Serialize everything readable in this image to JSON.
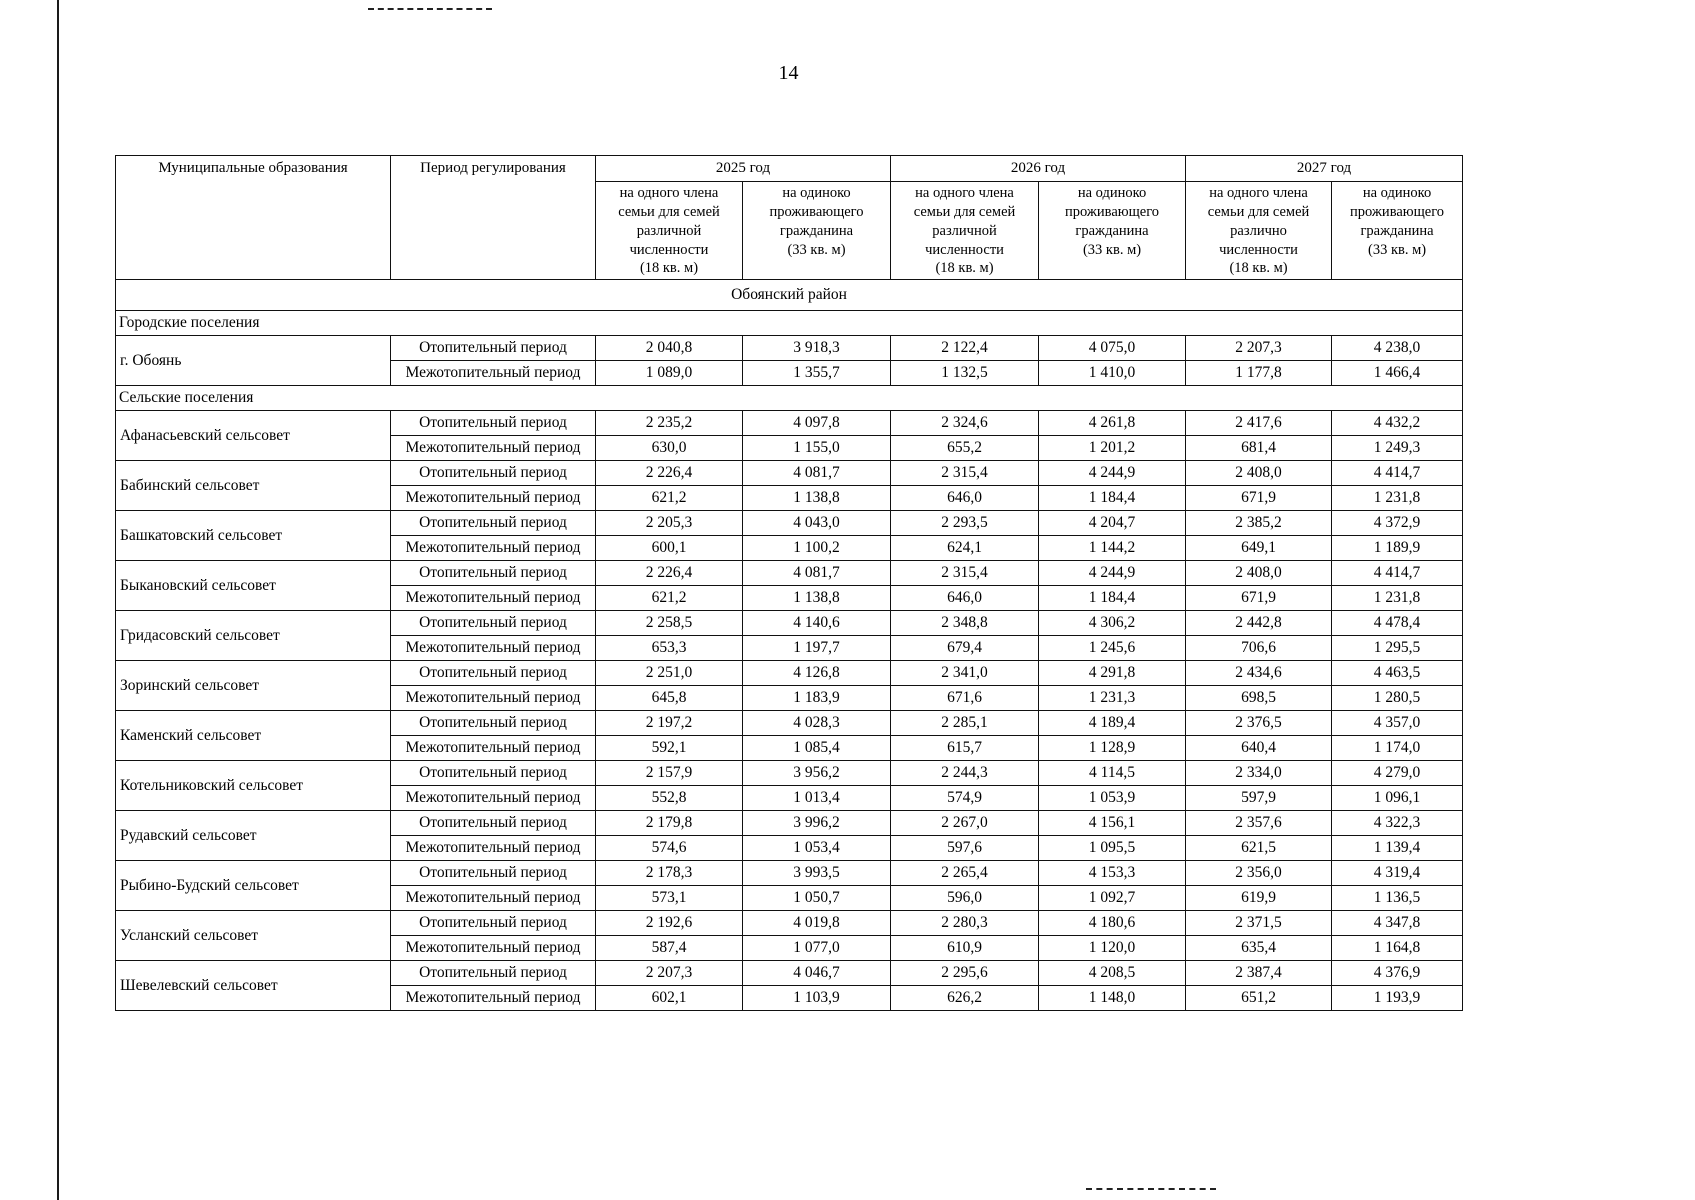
{
  "page": {
    "number": "14"
  },
  "table": {
    "header": {
      "col_municipality": "Муниципальные образования",
      "col_period": "Период регулирования",
      "years": [
        {
          "label": "2025 год",
          "sub": [
            "на одного члена\nсемьи для семей\nразличной\nчисленности\n(18 кв. м)",
            "на одиноко\nпроживающего\nгражданина\n(33 кв. м)"
          ]
        },
        {
          "label": "2026 год",
          "sub": [
            "на одного члена\nсемьи для семей\nразличной\nчисленности\n(18 кв. м)",
            "на одиноко\nпроживающего\nгражданина\n(33 кв. м)"
          ]
        },
        {
          "label": "2027 год",
          "sub": [
            "на одного члена\nсемьи для семей\nразлично\nчисленности\n(18 кв. м)",
            "на одиноко\nпроживающего\nгражданина\n(33 кв. м)"
          ]
        }
      ]
    },
    "district": "Обоянский район",
    "sections": [
      {
        "title": "Городские поселения",
        "rows": [
          {
            "name": "г. Обоянь",
            "periods": [
              {
                "label": "Отопительный период",
                "values": [
                  "2 040,8",
                  "3 918,3",
                  "2 122,4",
                  "4 075,0",
                  "2 207,3",
                  "4 238,0"
                ]
              },
              {
                "label": "Межотопительный период",
                "values": [
                  "1 089,0",
                  "1 355,7",
                  "1 132,5",
                  "1 410,0",
                  "1 177,8",
                  "1 466,4"
                ]
              }
            ]
          }
        ]
      },
      {
        "title": "Сельские поселения",
        "rows": [
          {
            "name": "Афанасьевский сельсовет",
            "periods": [
              {
                "label": "Отопительный период",
                "values": [
                  "2 235,2",
                  "4 097,8",
                  "2 324,6",
                  "4 261,8",
                  "2 417,6",
                  "4 432,2"
                ]
              },
              {
                "label": "Межотопительный период",
                "values": [
                  "630,0",
                  "1 155,0",
                  "655,2",
                  "1 201,2",
                  "681,4",
                  "1 249,3"
                ]
              }
            ]
          },
          {
            "name": "Бабинский сельсовет",
            "periods": [
              {
                "label": "Отопительный период",
                "values": [
                  "2 226,4",
                  "4 081,7",
                  "2 315,4",
                  "4 244,9",
                  "2 408,0",
                  "4 414,7"
                ]
              },
              {
                "label": "Межотопительный период",
                "values": [
                  "621,2",
                  "1 138,8",
                  "646,0",
                  "1 184,4",
                  "671,9",
                  "1 231,8"
                ]
              }
            ]
          },
          {
            "name": "Башкатовский сельсовет",
            "periods": [
              {
                "label": "Отопительный период",
                "values": [
                  "2 205,3",
                  "4 043,0",
                  "2 293,5",
                  "4 204,7",
                  "2 385,2",
                  "4 372,9"
                ]
              },
              {
                "label": "Межотопительный период",
                "values": [
                  "600,1",
                  "1 100,2",
                  "624,1",
                  "1 144,2",
                  "649,1",
                  "1 189,9"
                ]
              }
            ]
          },
          {
            "name": "Быкановский сельсовет",
            "periods": [
              {
                "label": "Отопительный период",
                "values": [
                  "2 226,4",
                  "4 081,7",
                  "2 315,4",
                  "4 244,9",
                  "2 408,0",
                  "4 414,7"
                ]
              },
              {
                "label": "Межотопительный период",
                "values": [
                  "621,2",
                  "1 138,8",
                  "646,0",
                  "1 184,4",
                  "671,9",
                  "1 231,8"
                ]
              }
            ]
          },
          {
            "name": "Гридасовский сельсовет",
            "periods": [
              {
                "label": "Отопительный период",
                "values": [
                  "2 258,5",
                  "4 140,6",
                  "2 348,8",
                  "4 306,2",
                  "2 442,8",
                  "4 478,4"
                ]
              },
              {
                "label": "Межотопительный период",
                "values": [
                  "653,3",
                  "1 197,7",
                  "679,4",
                  "1 245,6",
                  "706,6",
                  "1 295,5"
                ]
              }
            ]
          },
          {
            "name": "Зоринский сельсовет",
            "periods": [
              {
                "label": "Отопительный период",
                "values": [
                  "2 251,0",
                  "4 126,8",
                  "2 341,0",
                  "4 291,8",
                  "2 434,6",
                  "4 463,5"
                ]
              },
              {
                "label": "Межотопительный период",
                "values": [
                  "645,8",
                  "1 183,9",
                  "671,6",
                  "1 231,3",
                  "698,5",
                  "1 280,5"
                ]
              }
            ]
          },
          {
            "name": "Каменский сельсовет",
            "periods": [
              {
                "label": "Отопительный период",
                "values": [
                  "2 197,2",
                  "4 028,3",
                  "2 285,1",
                  "4 189,4",
                  "2 376,5",
                  "4 357,0"
                ]
              },
              {
                "label": "Межотопительный период",
                "values": [
                  "592,1",
                  "1 085,4",
                  "615,7",
                  "1 128,9",
                  "640,4",
                  "1 174,0"
                ]
              }
            ]
          },
          {
            "name": "Котельниковский сельсовет",
            "periods": [
              {
                "label": "Отопительный период",
                "values": [
                  "2 157,9",
                  "3 956,2",
                  "2 244,3",
                  "4 114,5",
                  "2 334,0",
                  "4 279,0"
                ]
              },
              {
                "label": "Межотопительный период",
                "values": [
                  "552,8",
                  "1 013,4",
                  "574,9",
                  "1 053,9",
                  "597,9",
                  "1 096,1"
                ]
              }
            ]
          },
          {
            "name": "Рудавский сельсовет",
            "periods": [
              {
                "label": "Отопительный период",
                "values": [
                  "2 179,8",
                  "3 996,2",
                  "2 267,0",
                  "4 156,1",
                  "2 357,6",
                  "4 322,3"
                ]
              },
              {
                "label": "Межотопительный период",
                "values": [
                  "574,6",
                  "1 053,4",
                  "597,6",
                  "1 095,5",
                  "621,5",
                  "1 139,4"
                ]
              }
            ]
          },
          {
            "name": "Рыбино-Будский сельсовет",
            "periods": [
              {
                "label": "Отопительный период",
                "values": [
                  "2 178,3",
                  "3 993,5",
                  "2 265,4",
                  "4 153,3",
                  "2 356,0",
                  "4 319,4"
                ]
              },
              {
                "label": "Межотопительный период",
                "values": [
                  "573,1",
                  "1 050,7",
                  "596,0",
                  "1 092,7",
                  "619,9",
                  "1 136,5"
                ]
              }
            ]
          },
          {
            "name": "Усланский сельсовет",
            "periods": [
              {
                "label": "Отопительный период",
                "values": [
                  "2 192,6",
                  "4 019,8",
                  "2 280,3",
                  "4 180,6",
                  "2 371,5",
                  "4 347,8"
                ]
              },
              {
                "label": "Межотопительный период",
                "values": [
                  "587,4",
                  "1 077,0",
                  "610,9",
                  "1 120,0",
                  "635,4",
                  "1 164,8"
                ]
              }
            ]
          },
          {
            "name": "Шевелевский сельсовет",
            "periods": [
              {
                "label": "Отопительный период",
                "values": [
                  "2 207,3",
                  "4 046,7",
                  "2 295,6",
                  "4 208,5",
                  "2 387,4",
                  "4 376,9"
                ]
              },
              {
                "label": "Межотопительный период",
                "values": [
                  "602,1",
                  "1 103,9",
                  "626,2",
                  "1 148,0",
                  "651,2",
                  "1 193,9"
                ]
              }
            ]
          }
        ]
      }
    ]
  }
}
